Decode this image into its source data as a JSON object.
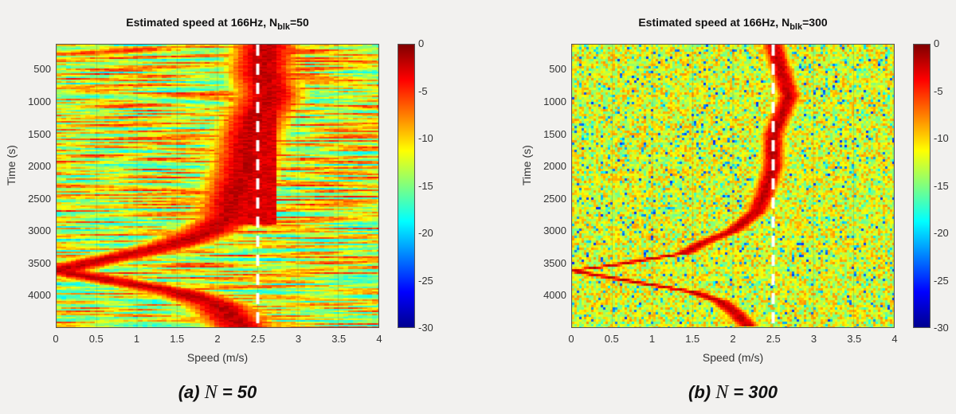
{
  "chart_data": [
    {
      "type": "heatmap",
      "title_main": "Estimated speed at 166Hz, N",
      "title_sub": "blk",
      "title_tail": "=50",
      "xlabel": "Speed (m/s)",
      "ylabel": "Time (s)",
      "xlim": [
        0,
        4
      ],
      "ylim": [
        100,
        4500
      ],
      "xticks": [
        "0",
        "0.5",
        "1",
        "1.5",
        "2",
        "2.5",
        "3",
        "3.5",
        "4"
      ],
      "yticks": [
        "500",
        "1000",
        "1500",
        "2000",
        "2500",
        "3000",
        "3500",
        "4000"
      ],
      "colorbar": {
        "range": [
          -30,
          0
        ],
        "ticks": [
          "0",
          "-5",
          "-10",
          "-15",
          "-20",
          "-25",
          "-30"
        ],
        "colormap": "jet"
      },
      "reference_speed": 2.5,
      "ridge_branch_1": {
        "time": [
          100,
          500,
          900,
          1200,
          1500,
          2000,
          2500,
          2800,
          3000,
          3200,
          3350,
          3500,
          3620
        ],
        "speed": [
          2.6,
          2.55,
          2.65,
          2.5,
          2.4,
          2.35,
          2.2,
          2.15,
          1.9,
          1.5,
          1.0,
          0.4,
          0
        ]
      },
      "ridge_branch_2": {
        "time": [
          3620,
          3800,
          3950,
          4150,
          4500
        ],
        "speed": [
          0,
          0.8,
          1.5,
          2.0,
          2.3
        ]
      },
      "caption_pre": "(a) ",
      "caption_n": "N",
      "caption_post": " = 50"
    },
    {
      "type": "heatmap",
      "title_main": "Estimated speed at 166Hz, N",
      "title_sub": "blk",
      "title_tail": "=300",
      "xlabel": "Speed (m/s)",
      "ylabel": "Time (s)",
      "xlim": [
        0,
        4
      ],
      "ylim": [
        100,
        4500
      ],
      "xticks": [
        "0",
        "0.5",
        "1",
        "1.5",
        "2",
        "2.5",
        "3",
        "3.5",
        "4"
      ],
      "yticks": [
        "500",
        "1000",
        "1500",
        "2000",
        "2500",
        "3000",
        "3500",
        "4000"
      ],
      "colorbar": {
        "range": [
          -30,
          0
        ],
        "ticks": [
          "0",
          "-5",
          "-10",
          "-15",
          "-20",
          "-25",
          "-30"
        ],
        "colormap": "jet"
      },
      "reference_speed": 2.5,
      "ridge_branch_1": {
        "time": [
          100,
          500,
          900,
          1200,
          1500,
          2000,
          2400,
          2700,
          3000,
          3200,
          3350,
          3450,
          3520,
          3620
        ],
        "speed": [
          2.5,
          2.6,
          2.7,
          2.6,
          2.5,
          2.5,
          2.4,
          2.3,
          2.0,
          1.6,
          1.4,
          0.9,
          0.6,
          0
        ]
      },
      "ridge_branch_2": {
        "time": [
          3620,
          3800,
          3950,
          4100,
          4300,
          4500
        ],
        "speed": [
          0,
          0.8,
          1.5,
          1.85,
          2.05,
          2.2
        ]
      },
      "caption_pre": "(b) ",
      "caption_n": "N",
      "caption_post": " = 300"
    }
  ]
}
